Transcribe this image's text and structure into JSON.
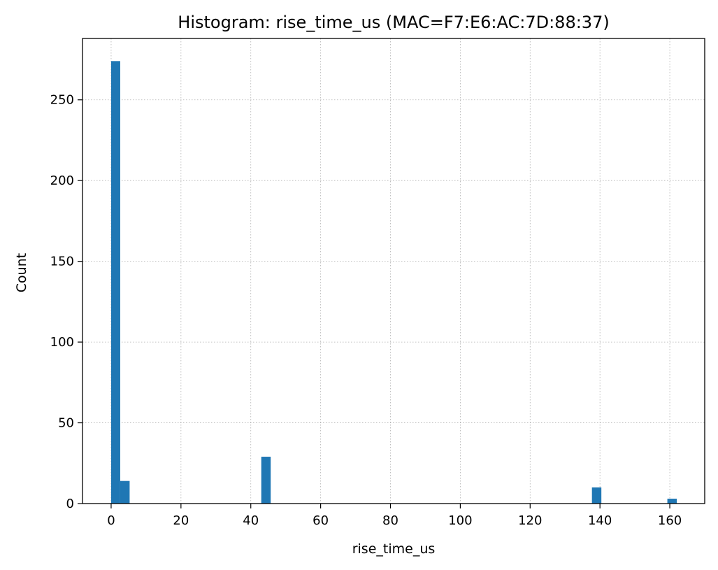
{
  "chart_data": {
    "type": "bar",
    "title": "Histogram: rise_time_us (MAC=F7:E6:AC:7D:88:37)",
    "xlabel": "rise_time_us",
    "ylabel": "Count",
    "xlim": [
      -8.2,
      170
    ],
    "ylim": [
      0,
      288
    ],
    "xticks": [
      0,
      20,
      40,
      60,
      80,
      100,
      120,
      140,
      160
    ],
    "yticks": [
      0,
      50,
      100,
      150,
      200,
      250
    ],
    "grid": true,
    "bar_color": "#1f77b4",
    "bins": [
      {
        "x0": 0.0,
        "x1": 2.6,
        "count": 274
      },
      {
        "x0": 2.6,
        "x1": 5.3,
        "count": 14
      },
      {
        "x0": 43.0,
        "x1": 45.7,
        "count": 29
      },
      {
        "x0": 137.7,
        "x1": 140.4,
        "count": 10
      },
      {
        "x0": 159.3,
        "x1": 162.0,
        "count": 3
      }
    ]
  }
}
